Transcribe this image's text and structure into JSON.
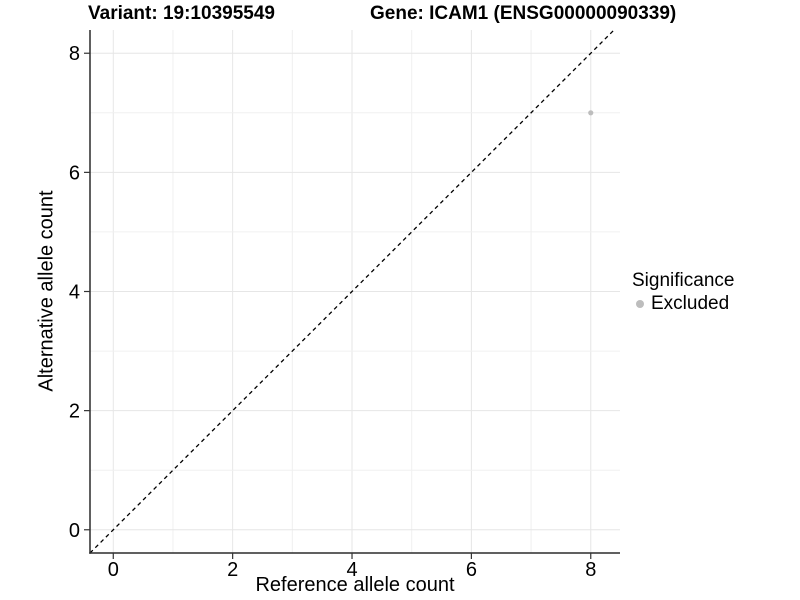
{
  "chart_data": {
    "type": "scatter",
    "title_left": "Variant: 19:10395549",
    "title_right": "Gene: ICAM1 (ENSG00000090339)",
    "xlabel": "Reference allele count",
    "ylabel": "Alternative allele count",
    "xlim": [
      -0.39,
      8.49
    ],
    "ylim": [
      -0.39,
      8.39
    ],
    "x_ticks": [
      0,
      2,
      4,
      6,
      8
    ],
    "y_ticks": [
      0,
      2,
      4,
      6,
      8
    ],
    "grid": true,
    "grid_step": 1,
    "identity_line": {
      "slope": 1,
      "intercept": 0,
      "style": "dashed",
      "color": "#000000"
    },
    "series": [
      {
        "name": "Excluded",
        "color": "#bdbdbd",
        "points": [
          {
            "x": 8,
            "y": 7
          }
        ]
      }
    ],
    "legend": {
      "title": "Significance",
      "position": "right",
      "items": [
        {
          "label": "Excluded",
          "color": "#bdbdbd"
        }
      ]
    },
    "style": {
      "axis_color": "#2b2b2b",
      "tick_color": "#333333",
      "text_color": "#000000",
      "grid_major_color": "#e6e6e6",
      "grid_minor_color": "#f0f0f0",
      "background": "#ffffff",
      "tick_font_px": 20,
      "point_radius": 2.6
    }
  }
}
